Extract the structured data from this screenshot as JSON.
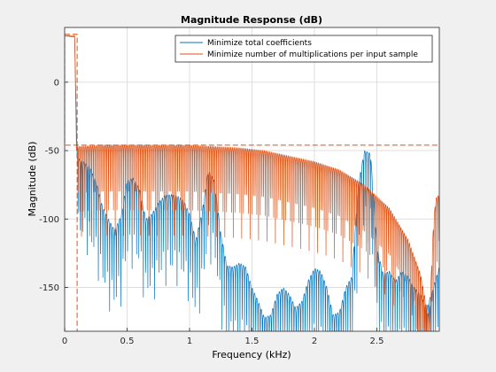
{
  "chart_data": {
    "type": "line",
    "title": "Magnitude Response (dB)",
    "xlabel": "Frequency (kHz)",
    "ylabel": "Magnitude (dB)",
    "xlim": [
      0,
      3.0
    ],
    "ylim": [
      -182,
      40
    ],
    "xticks": [
      0,
      0.5,
      1,
      1.5,
      2,
      2.5
    ],
    "xtick_labels": [
      "0",
      "0.5",
      "1",
      "1.5",
      "2",
      "2.5"
    ],
    "yticks": [
      0,
      -50,
      -100,
      -150
    ],
    "ytick_labels": [
      "0",
      "-50",
      "-100",
      "-150"
    ],
    "grid": true,
    "legend_position": "top-right",
    "series": [
      {
        "name": "Minimize total coefficients",
        "color": "#0072bd",
        "envelope": [
          [
            0.0,
            34
          ],
          [
            0.08,
            33
          ],
          [
            0.1,
            -55
          ],
          [
            0.15,
            -58
          ],
          [
            0.2,
            -62
          ],
          [
            0.25,
            -72
          ],
          [
            0.3,
            -90
          ],
          [
            0.35,
            -100
          ],
          [
            0.4,
            -108
          ],
          [
            0.45,
            -98
          ],
          [
            0.5,
            -72
          ],
          [
            0.55,
            -70
          ],
          [
            0.6,
            -78
          ],
          [
            0.65,
            -100
          ],
          [
            0.7,
            -96
          ],
          [
            0.75,
            -88
          ],
          [
            0.8,
            -83
          ],
          [
            0.85,
            -82
          ],
          [
            0.9,
            -83
          ],
          [
            0.95,
            -86
          ],
          [
            1.0,
            -96
          ],
          [
            1.05,
            -115
          ],
          [
            1.1,
            -95
          ],
          [
            1.15,
            -64
          ],
          [
            1.2,
            -72
          ],
          [
            1.25,
            -110
          ],
          [
            1.3,
            -134
          ],
          [
            1.35,
            -135
          ],
          [
            1.4,
            -132
          ],
          [
            1.45,
            -135
          ],
          [
            1.5,
            -150
          ],
          [
            1.55,
            -160
          ],
          [
            1.6,
            -172
          ],
          [
            1.65,
            -170
          ],
          [
            1.7,
            -155
          ],
          [
            1.75,
            -150
          ],
          [
            1.8,
            -155
          ],
          [
            1.85,
            -165
          ],
          [
            1.9,
            -160
          ],
          [
            1.95,
            -145
          ],
          [
            2.0,
            -136
          ],
          [
            2.05,
            -138
          ],
          [
            2.1,
            -150
          ],
          [
            2.15,
            -170
          ],
          [
            2.2,
            -168
          ],
          [
            2.25,
            -150
          ],
          [
            2.3,
            -142
          ],
          [
            2.35,
            -75
          ],
          [
            2.4,
            -50
          ],
          [
            2.45,
            -52
          ],
          [
            2.5,
            -120
          ],
          [
            2.55,
            -140
          ],
          [
            2.6,
            -138
          ],
          [
            2.65,
            -145
          ],
          [
            2.7,
            -138
          ],
          [
            2.75,
            -142
          ],
          [
            2.8,
            -150
          ],
          [
            2.85,
            -155
          ],
          [
            2.9,
            -165
          ],
          [
            2.95,
            -150
          ],
          [
            3.0,
            -135
          ]
        ]
      },
      {
        "name": "Minimize number of multiplications per input sample",
        "color": "#d95319",
        "envelope": [
          [
            0.0,
            34
          ],
          [
            0.08,
            34
          ],
          [
            0.095,
            -50
          ],
          [
            0.1,
            -47
          ],
          [
            0.3,
            -46
          ],
          [
            0.6,
            -46
          ],
          [
            1.0,
            -46
          ],
          [
            1.2,
            -47
          ],
          [
            1.4,
            -48
          ],
          [
            1.6,
            -50
          ],
          [
            1.8,
            -54
          ],
          [
            2.0,
            -58
          ],
          [
            2.2,
            -64
          ],
          [
            2.4,
            -75
          ],
          [
            2.6,
            -92
          ],
          [
            2.75,
            -115
          ],
          [
            2.85,
            -140
          ],
          [
            2.92,
            -175
          ],
          [
            2.95,
            -110
          ],
          [
            2.97,
            -85
          ],
          [
            3.0,
            -82
          ]
        ]
      }
    ],
    "masks": [
      {
        "name": "spec-mask",
        "color": "#d95319",
        "style": "dashed",
        "points": [
          [
            0,
            35
          ],
          [
            0.1,
            35
          ],
          [
            0.1,
            -46
          ],
          [
            3.0,
            -46
          ]
        ],
        "cutoff_line": [
          [
            0.1,
            -46
          ],
          [
            0.1,
            -182
          ]
        ],
        "left_line": [
          [
            0.0,
            35
          ],
          [
            0.0,
            -46
          ],
          [
            0.1,
            -46
          ]
        ]
      }
    ]
  }
}
